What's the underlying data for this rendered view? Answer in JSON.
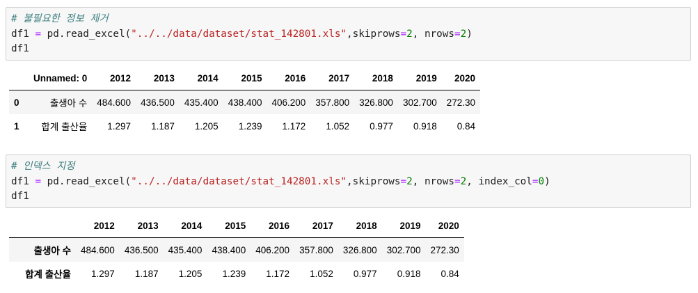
{
  "cell1": {
    "comment": "# 불필요한 정보 제거",
    "line2": {
      "prefix": "df1 ",
      "eq": "=",
      "call": " pd.read_excel(",
      "path": "\"../../data/dataset/stat_142801.xls\"",
      "arg1": ",skiprows",
      "eq2": "=",
      "num1": "2",
      "arg2": ", nrows",
      "eq3": "=",
      "num2": "2",
      "close": ")"
    },
    "line3": "df1"
  },
  "table1": {
    "headers": [
      "",
      "Unnamed: 0",
      "2012",
      "2013",
      "2014",
      "2015",
      "2016",
      "2017",
      "2018",
      "2019",
      "2020"
    ],
    "rows": [
      {
        "index": "0",
        "label": "출생아 수",
        "values": [
          "484.600",
          "436.500",
          "435.400",
          "438.400",
          "406.200",
          "357.800",
          "326.800",
          "302.700",
          "272.30"
        ]
      },
      {
        "index": "1",
        "label": "합계 출산율",
        "values": [
          "1.297",
          "1.187",
          "1.205",
          "1.239",
          "1.172",
          "1.052",
          "0.977",
          "0.918",
          "0.84"
        ]
      }
    ]
  },
  "cell2": {
    "comment": "# 인덱스 지정",
    "line2": {
      "prefix": "df1 ",
      "eq": "=",
      "call": " pd.read_excel(",
      "path": "\"../../data/dataset/stat_142801.xls\"",
      "arg1": ",skiprows",
      "eq2": "=",
      "num1": "2",
      "arg2": ", nrows",
      "eq3": "=",
      "num2": "2",
      "arg3": ", index_col",
      "eq4": "=",
      "num3": "0",
      "close": ")"
    },
    "line3": "df1"
  },
  "table2": {
    "headers": [
      "",
      "2012",
      "2013",
      "2014",
      "2015",
      "2016",
      "2017",
      "2018",
      "2019",
      "2020"
    ],
    "rows": [
      {
        "index": "출생아 수",
        "values": [
          "484.600",
          "436.500",
          "435.400",
          "438.400",
          "406.200",
          "357.800",
          "326.800",
          "302.700",
          "272.30"
        ]
      },
      {
        "index": "합계 출산율",
        "values": [
          "1.297",
          "1.187",
          "1.205",
          "1.239",
          "1.172",
          "1.052",
          "0.977",
          "0.918",
          "0.84"
        ]
      }
    ]
  }
}
